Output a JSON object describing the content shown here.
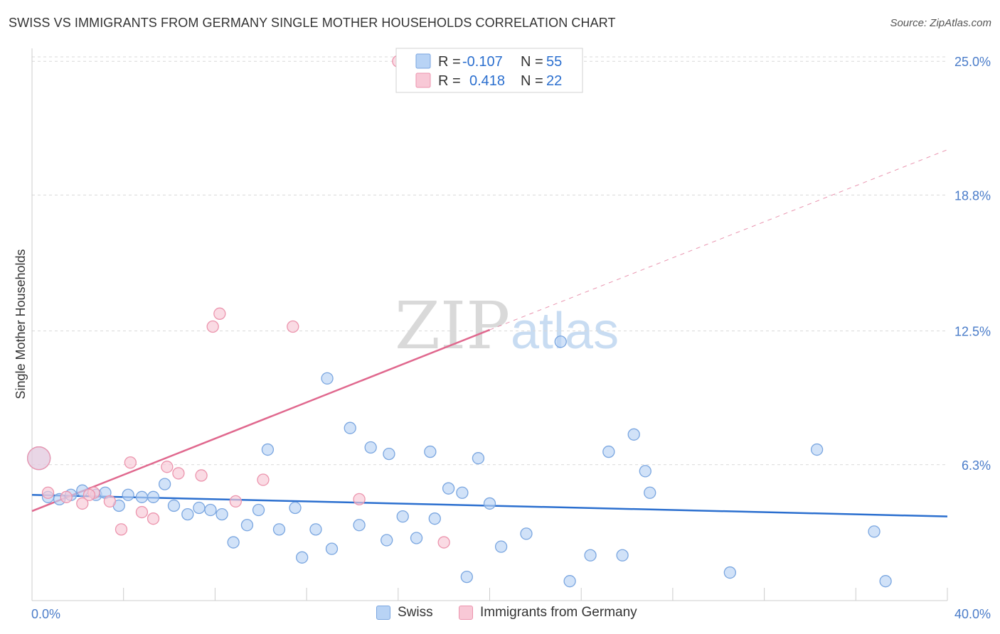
{
  "title": "SWISS VS IMMIGRANTS FROM GERMANY SINGLE MOTHER HOUSEHOLDS CORRELATION CHART",
  "source": "Source: ZipAtlas.com",
  "watermark": {
    "zip": "ZIP",
    "atlas": "atlas"
  },
  "colors": {
    "swiss_fill": "#b8d3f5",
    "swiss_stroke": "#7aa6e0",
    "swiss_line": "#2b6fcf",
    "germany_fill": "#f8c8d6",
    "germany_stroke": "#ec94ad",
    "germany_line": "#e0688e",
    "grid": "#d8d8d8",
    "tick_text": "#4a7cc9"
  },
  "legend": {
    "swiss": {
      "r_label": "R = ",
      "r_value": "-0.107",
      "n_label": "N = ",
      "n_value": "55"
    },
    "germany": {
      "r_label": "R = ",
      "r_value": "0.418",
      "n_label": "N = ",
      "n_value": "22"
    }
  },
  "bottom_legend": {
    "swiss": "Swiss",
    "germany": "Immigrants from Germany"
  },
  "chart_data": {
    "type": "scatter",
    "title": "SWISS VS IMMIGRANTS FROM GERMANY SINGLE MOTHER HOUSEHOLDS CORRELATION CHART",
    "xlabel": "",
    "ylabel": "Single Mother Households",
    "x_tick_labels": [
      "0.0%",
      "40.0%"
    ],
    "y_tick_labels": [
      "6.3%",
      "12.5%",
      "18.8%",
      "25.0%"
    ],
    "y_ticks": [
      6.3,
      12.5,
      18.8,
      25.0
    ],
    "xlim": [
      0,
      40
    ],
    "ylim": [
      0,
      25.6
    ],
    "grid": true,
    "legend_position": "top-center",
    "series": [
      {
        "name": "Swiss",
        "points": [
          [
            0.7,
            4.8
          ],
          [
            1.2,
            4.7
          ],
          [
            1.7,
            4.9
          ],
          [
            2.2,
            5.1
          ],
          [
            2.8,
            4.9
          ],
          [
            3.2,
            5.0
          ],
          [
            3.8,
            4.4
          ],
          [
            4.2,
            4.9
          ],
          [
            4.8,
            4.8
          ],
          [
            5.3,
            4.8
          ],
          [
            5.8,
            5.4
          ],
          [
            6.2,
            4.4
          ],
          [
            6.8,
            4.0
          ],
          [
            7.3,
            4.3
          ],
          [
            7.8,
            4.2
          ],
          [
            8.3,
            4.0
          ],
          [
            8.8,
            2.7
          ],
          [
            9.4,
            3.5
          ],
          [
            9.9,
            4.2
          ],
          [
            10.3,
            7.0
          ],
          [
            10.8,
            3.3
          ],
          [
            11.5,
            4.3
          ],
          [
            11.8,
            2.0
          ],
          [
            12.4,
            3.3
          ],
          [
            12.9,
            10.3
          ],
          [
            13.1,
            2.4
          ],
          [
            13.9,
            8.0
          ],
          [
            14.3,
            3.5
          ],
          [
            14.8,
            7.1
          ],
          [
            15.5,
            2.8
          ],
          [
            15.6,
            6.8
          ],
          [
            16.2,
            3.9
          ],
          [
            16.8,
            2.9
          ],
          [
            17.4,
            6.9
          ],
          [
            17.6,
            3.8
          ],
          [
            18.2,
            5.2
          ],
          [
            18.8,
            5.0
          ],
          [
            19.0,
            1.1
          ],
          [
            19.5,
            6.6
          ],
          [
            20.0,
            4.5
          ],
          [
            20.5,
            2.5
          ],
          [
            21.6,
            3.1
          ],
          [
            23.1,
            12.0
          ],
          [
            23.5,
            0.9
          ],
          [
            24.4,
            2.1
          ],
          [
            25.2,
            6.9
          ],
          [
            25.8,
            2.1
          ],
          [
            26.3,
            7.7
          ],
          [
            26.8,
            6.0
          ],
          [
            27.0,
            5.0
          ],
          [
            30.5,
            1.3
          ],
          [
            34.3,
            7.0
          ],
          [
            36.8,
            3.2
          ],
          [
            37.3,
            0.9
          ],
          [
            0.3,
            6.6
          ]
        ]
      },
      {
        "name": "Immigrants from Germany",
        "points": [
          [
            0.7,
            5.0
          ],
          [
            1.5,
            4.8
          ],
          [
            2.2,
            4.5
          ],
          [
            2.7,
            5.0
          ],
          [
            3.4,
            4.6
          ],
          [
            3.9,
            3.3
          ],
          [
            4.3,
            6.4
          ],
          [
            4.8,
            4.1
          ],
          [
            5.3,
            3.8
          ],
          [
            5.9,
            6.2
          ],
          [
            6.4,
            5.9
          ],
          [
            7.4,
            5.8
          ],
          [
            7.9,
            12.7
          ],
          [
            8.2,
            13.3
          ],
          [
            8.9,
            4.6
          ],
          [
            10.1,
            5.6
          ],
          [
            11.4,
            12.7
          ],
          [
            14.3,
            4.7
          ],
          [
            16.0,
            25.0
          ],
          [
            18.0,
            2.7
          ],
          [
            2.5,
            4.9
          ],
          [
            0.3,
            6.6
          ]
        ]
      }
    ],
    "trendlines": [
      {
        "name": "Swiss",
        "from": [
          0,
          4.9
        ],
        "to": [
          40,
          3.9
        ]
      },
      {
        "name": "Immigrants from Germany",
        "from": [
          0,
          4.15
        ],
        "to": [
          20,
          12.55
        ],
        "dashed_extension_to": [
          40,
          20.9
        ]
      }
    ]
  }
}
